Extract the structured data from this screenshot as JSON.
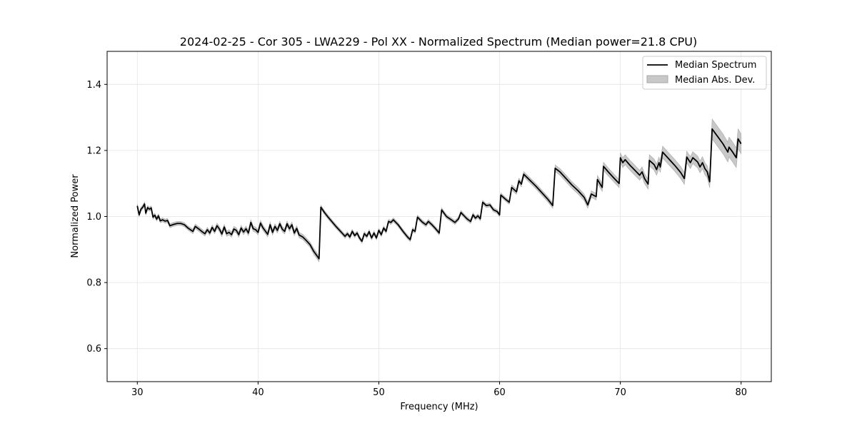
{
  "chart_data": {
    "type": "line",
    "title": "2024-02-25 - Cor 305 - LWA229 - Pol XX - Normalized Spectrum (Median power=21.8 CPU)",
    "xlabel": "Frequency (MHz)",
    "ylabel": "Normalized Power",
    "xlim": [
      27.5,
      82.5
    ],
    "ylim": [
      0.5,
      1.5
    ],
    "xticks": [
      30,
      40,
      50,
      60,
      70,
      80
    ],
    "yticks": [
      0.6,
      0.8,
      1.0,
      1.2,
      1.4
    ],
    "xtick_labels": [
      "30",
      "40",
      "50",
      "60",
      "70",
      "80"
    ],
    "ytick_labels": [
      "0.6",
      "0.8",
      "1.0",
      "1.2",
      "1.4"
    ],
    "grid": true,
    "legend": {
      "position": "top-right",
      "entries": [
        {
          "label": "Median Spectrum",
          "kind": "line"
        },
        {
          "label": "Median Abs. Dev.",
          "kind": "band"
        }
      ]
    },
    "series": [
      {
        "name": "Median Spectrum",
        "color": "#000000",
        "fill_color": "#c8c8c8",
        "points": [
          [
            30.0,
            1.032,
            0.006
          ],
          [
            30.15,
            1.005,
            0.006
          ],
          [
            30.3,
            1.022,
            0.006
          ],
          [
            30.45,
            1.028,
            0.006
          ],
          [
            30.6,
            1.038,
            0.006
          ],
          [
            30.7,
            1.01,
            0.006
          ],
          [
            30.85,
            1.027,
            0.006
          ],
          [
            31.0,
            1.022,
            0.006
          ],
          [
            31.15,
            1.026,
            0.006
          ],
          [
            31.3,
            0.998,
            0.006
          ],
          [
            31.45,
            1.004,
            0.006
          ],
          [
            31.6,
            0.992,
            0.006
          ],
          [
            31.75,
            1.002,
            0.006
          ],
          [
            31.9,
            0.987,
            0.006
          ],
          [
            32.1,
            0.99,
            0.006
          ],
          [
            32.3,
            0.986,
            0.006
          ],
          [
            32.5,
            0.988,
            0.006
          ],
          [
            32.7,
            0.972,
            0.006
          ],
          [
            33.0,
            0.976,
            0.006
          ],
          [
            33.3,
            0.979,
            0.006
          ],
          [
            33.6,
            0.979,
            0.006
          ],
          [
            33.9,
            0.975,
            0.006
          ],
          [
            34.2,
            0.965,
            0.006
          ],
          [
            34.6,
            0.955,
            0.007
          ],
          [
            34.8,
            0.97,
            0.007
          ],
          [
            35.1,
            0.962,
            0.007
          ],
          [
            35.4,
            0.953,
            0.007
          ],
          [
            35.6,
            0.948,
            0.007
          ],
          [
            35.8,
            0.96,
            0.007
          ],
          [
            36.0,
            0.95,
            0.007
          ],
          [
            36.2,
            0.967,
            0.007
          ],
          [
            36.4,
            0.955,
            0.007
          ],
          [
            36.6,
            0.972,
            0.008
          ],
          [
            36.8,
            0.962,
            0.008
          ],
          [
            37.0,
            0.947,
            0.008
          ],
          [
            37.2,
            0.968,
            0.008
          ],
          [
            37.4,
            0.948,
            0.008
          ],
          [
            37.6,
            0.952,
            0.008
          ],
          [
            37.8,
            0.945,
            0.008
          ],
          [
            38.0,
            0.962,
            0.008
          ],
          [
            38.2,
            0.958,
            0.008
          ],
          [
            38.4,
            0.945,
            0.008
          ],
          [
            38.6,
            0.965,
            0.008
          ],
          [
            38.8,
            0.953,
            0.008
          ],
          [
            39.0,
            0.963,
            0.008
          ],
          [
            39.2,
            0.95,
            0.008
          ],
          [
            39.4,
            0.982,
            0.008
          ],
          [
            39.6,
            0.963,
            0.008
          ],
          [
            39.8,
            0.96,
            0.008
          ],
          [
            40.0,
            0.952,
            0.008
          ],
          [
            40.2,
            0.98,
            0.008
          ],
          [
            40.4,
            0.966,
            0.008
          ],
          [
            40.6,
            0.956,
            0.008
          ],
          [
            40.8,
            0.946,
            0.008
          ],
          [
            41.0,
            0.975,
            0.008
          ],
          [
            41.2,
            0.952,
            0.008
          ],
          [
            41.4,
            0.97,
            0.008
          ],
          [
            41.6,
            0.958,
            0.008
          ],
          [
            41.8,
            0.978,
            0.008
          ],
          [
            42.0,
            0.962,
            0.008
          ],
          [
            42.2,
            0.955,
            0.008
          ],
          [
            42.4,
            0.978,
            0.008
          ],
          [
            42.6,
            0.963,
            0.008
          ],
          [
            42.8,
            0.975,
            0.008
          ],
          [
            43.0,
            0.95,
            0.008
          ],
          [
            43.2,
            0.964,
            0.008
          ],
          [
            43.4,
            0.944,
            0.008
          ],
          [
            43.7,
            0.938,
            0.008
          ],
          [
            44.0,
            0.927,
            0.008
          ],
          [
            44.3,
            0.915,
            0.008
          ],
          [
            44.6,
            0.895,
            0.009
          ],
          [
            44.9,
            0.88,
            0.009
          ],
          [
            45.05,
            0.872,
            0.009
          ],
          [
            45.2,
            1.028,
            0.006
          ],
          [
            45.5,
            1.012,
            0.006
          ],
          [
            45.8,
            0.998,
            0.006
          ],
          [
            46.1,
            0.985,
            0.006
          ],
          [
            46.4,
            0.972,
            0.006
          ],
          [
            46.7,
            0.96,
            0.006
          ],
          [
            47.0,
            0.948,
            0.006
          ],
          [
            47.2,
            0.94,
            0.006
          ],
          [
            47.4,
            0.948,
            0.006
          ],
          [
            47.6,
            0.938,
            0.006
          ],
          [
            47.8,
            0.955,
            0.006
          ],
          [
            48.0,
            0.942,
            0.006
          ],
          [
            48.2,
            0.95,
            0.006
          ],
          [
            48.4,
            0.935,
            0.006
          ],
          [
            48.6,
            0.925,
            0.006
          ],
          [
            48.8,
            0.948,
            0.006
          ],
          [
            49.0,
            0.94,
            0.006
          ],
          [
            49.2,
            0.954,
            0.006
          ],
          [
            49.4,
            0.935,
            0.006
          ],
          [
            49.6,
            0.95,
            0.006
          ],
          [
            49.8,
            0.935,
            0.006
          ],
          [
            50.0,
            0.958,
            0.006
          ],
          [
            50.2,
            0.945,
            0.006
          ],
          [
            50.4,
            0.965,
            0.006
          ],
          [
            50.6,
            0.955,
            0.006
          ],
          [
            50.8,
            0.985,
            0.006
          ],
          [
            51.0,
            0.982,
            0.006
          ],
          [
            51.2,
            0.99,
            0.006
          ],
          [
            51.6,
            0.975,
            0.006
          ],
          [
            52.0,
            0.955,
            0.006
          ],
          [
            52.4,
            0.937,
            0.006
          ],
          [
            52.6,
            0.93,
            0.006
          ],
          [
            52.8,
            0.96,
            0.006
          ],
          [
            53.0,
            0.955,
            0.006
          ],
          [
            53.2,
            0.998,
            0.006
          ],
          [
            53.6,
            0.983,
            0.006
          ],
          [
            53.9,
            0.975,
            0.006
          ],
          [
            54.1,
            0.985,
            0.006
          ],
          [
            54.4,
            0.975,
            0.006
          ],
          [
            54.7,
            0.963,
            0.006
          ],
          [
            55.0,
            0.95,
            0.006
          ],
          [
            55.2,
            1.02,
            0.006
          ],
          [
            55.6,
            1.0,
            0.006
          ],
          [
            56.0,
            0.99,
            0.006
          ],
          [
            56.3,
            0.982,
            0.006
          ],
          [
            56.6,
            0.993,
            0.006
          ],
          [
            56.8,
            1.012,
            0.006
          ],
          [
            57.3,
            0.993,
            0.006
          ],
          [
            57.6,
            0.985,
            0.006
          ],
          [
            57.8,
            1.005,
            0.006
          ],
          [
            58.0,
            0.995,
            0.006
          ],
          [
            58.2,
            1.002,
            0.006
          ],
          [
            58.4,
            0.993,
            0.006
          ],
          [
            58.6,
            1.043,
            0.006
          ],
          [
            58.9,
            1.033,
            0.006
          ],
          [
            59.2,
            1.035,
            0.006
          ],
          [
            59.5,
            1.02,
            0.006
          ],
          [
            59.8,
            1.015,
            0.006
          ],
          [
            60.0,
            1.005,
            0.006
          ],
          [
            60.1,
            1.065,
            0.006
          ],
          [
            60.5,
            1.052,
            0.006
          ],
          [
            60.8,
            1.043,
            0.006
          ],
          [
            61.0,
            1.088,
            0.008
          ],
          [
            61.4,
            1.075,
            0.008
          ],
          [
            61.6,
            1.108,
            0.008
          ],
          [
            61.8,
            1.098,
            0.008
          ],
          [
            62.0,
            1.128,
            0.008
          ],
          [
            62.5,
            1.11,
            0.008
          ],
          [
            63.0,
            1.092,
            0.008
          ],
          [
            63.5,
            1.072,
            0.008
          ],
          [
            64.0,
            1.052,
            0.008
          ],
          [
            64.4,
            1.033,
            0.008
          ],
          [
            64.6,
            1.146,
            0.01
          ],
          [
            65.0,
            1.135,
            0.01
          ],
          [
            65.5,
            1.115,
            0.01
          ],
          [
            66.0,
            1.095,
            0.01
          ],
          [
            66.5,
            1.078,
            0.01
          ],
          [
            67.0,
            1.058,
            0.01
          ],
          [
            67.3,
            1.035,
            0.01
          ],
          [
            67.6,
            1.068,
            0.01
          ],
          [
            68.0,
            1.06,
            0.01
          ],
          [
            68.1,
            1.112,
            0.012
          ],
          [
            68.5,
            1.088,
            0.012
          ],
          [
            68.6,
            1.152,
            0.012
          ],
          [
            69.0,
            1.135,
            0.012
          ],
          [
            69.5,
            1.115,
            0.012
          ],
          [
            69.9,
            1.1,
            0.012
          ],
          [
            70.0,
            1.178,
            0.015
          ],
          [
            70.2,
            1.163,
            0.015
          ],
          [
            70.4,
            1.172,
            0.015
          ],
          [
            70.8,
            1.155,
            0.015
          ],
          [
            71.2,
            1.14,
            0.015
          ],
          [
            71.6,
            1.125,
            0.015
          ],
          [
            71.8,
            1.135,
            0.015
          ],
          [
            72.0,
            1.115,
            0.015
          ],
          [
            72.3,
            1.098,
            0.015
          ],
          [
            72.4,
            1.17,
            0.017
          ],
          [
            72.8,
            1.157,
            0.017
          ],
          [
            73.0,
            1.142,
            0.017
          ],
          [
            73.2,
            1.163,
            0.017
          ],
          [
            73.3,
            1.15,
            0.017
          ],
          [
            73.5,
            1.195,
            0.018
          ],
          [
            74.0,
            1.175,
            0.018
          ],
          [
            74.5,
            1.155,
            0.018
          ],
          [
            75.0,
            1.133,
            0.018
          ],
          [
            75.3,
            1.115,
            0.018
          ],
          [
            75.5,
            1.18,
            0.018
          ],
          [
            75.8,
            1.163,
            0.018
          ],
          [
            76.0,
            1.178,
            0.018
          ],
          [
            76.4,
            1.165,
            0.018
          ],
          [
            76.6,
            1.15,
            0.018
          ],
          [
            76.8,
            1.163,
            0.018
          ],
          [
            77.0,
            1.145,
            0.018
          ],
          [
            77.2,
            1.135,
            0.018
          ],
          [
            77.4,
            1.105,
            0.018
          ],
          [
            77.6,
            1.265,
            0.03
          ],
          [
            78.0,
            1.245,
            0.03
          ],
          [
            78.5,
            1.22,
            0.03
          ],
          [
            78.9,
            1.195,
            0.03
          ],
          [
            79.0,
            1.21,
            0.03
          ],
          [
            79.3,
            1.195,
            0.03
          ],
          [
            79.6,
            1.178,
            0.03
          ],
          [
            79.75,
            1.235,
            0.03
          ],
          [
            80.0,
            1.22,
            0.03
          ]
        ]
      }
    ]
  }
}
